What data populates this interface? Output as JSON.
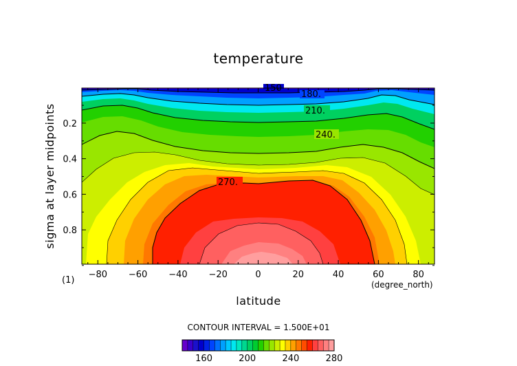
{
  "chart_data": {
    "type": "heatmap",
    "title": "temperature",
    "xlabel": "latitude",
    "ylabel": "sigma at layer midpoints",
    "x_unit": "(degree_north)",
    "corner_label": "(1)",
    "xlim": [
      -88,
      88
    ],
    "ylim": [
      0.993,
      0.003
    ],
    "x_ticks": [
      -80,
      -60,
      -40,
      -20,
      0,
      20,
      40,
      60,
      80
    ],
    "x_tick_labels": [
      "−80",
      "−60",
      "−40",
      "−20",
      "0",
      "20",
      "40",
      "60",
      "80"
    ],
    "y_ticks": [
      0.2,
      0.4,
      0.6,
      0.8
    ],
    "y_tick_labels": [
      "0.2",
      "0.4",
      "0.6",
      "0.8"
    ],
    "contour_interval_text": "CONTOUR INTERVAL = 1.500E+01",
    "contour_labels": [
      "150",
      "180.",
      "210.",
      "240.",
      "270."
    ],
    "colorbar": {
      "levels": [
        140,
        145,
        150,
        155,
        160,
        165,
        170,
        175,
        180,
        185,
        190,
        195,
        200,
        205,
        210,
        215,
        220,
        225,
        230,
        235,
        240,
        245,
        250,
        255,
        260,
        265,
        270,
        275,
        280,
        285,
        290,
        295
      ],
      "tick_values": [
        160,
        200,
        240,
        280
      ],
      "tick_labels": [
        "160",
        "200",
        "240",
        "280"
      ],
      "colors": [
        "#6600cc",
        "#3a00cc",
        "#1a10cc",
        "#0000cc",
        "#0022e6",
        "#0044ff",
        "#0070ff",
        "#00a0ff",
        "#00c8ff",
        "#00e8f0",
        "#00e8c0",
        "#00d890",
        "#00d060",
        "#00cc30",
        "#22d000",
        "#66dd00",
        "#99e600",
        "#ccee00",
        "#ffff00",
        "#ffd000",
        "#ffa000",
        "#ff7800",
        "#ff4c00",
        "#ff2000",
        "#ff4040",
        "#ff6060",
        "#ff8080",
        "#ff9e9e"
      ]
    }
  }
}
